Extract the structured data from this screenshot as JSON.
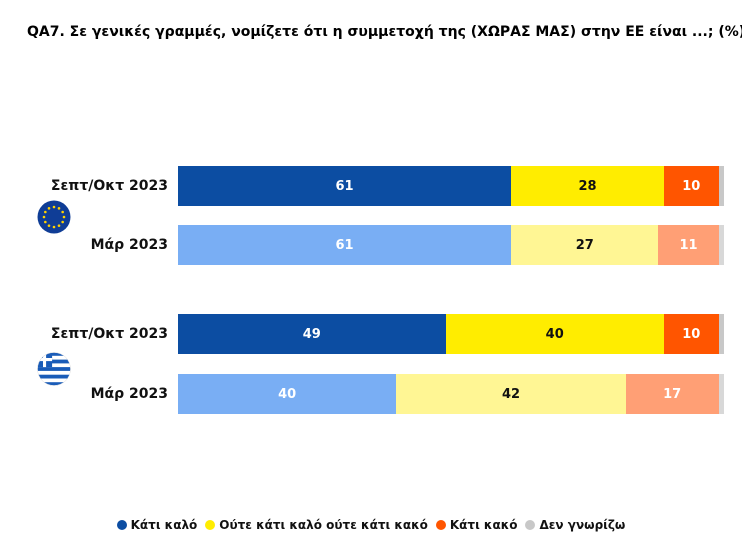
{
  "title": "QA7. Σε γενικές γραμμές, νομίζετε ότι η συμμετοχή της (ΧΩΡΑΣ ΜΑΣ) στην ΕΕ είναι ...; (%)",
  "legend": [
    {
      "label": "Κάτι καλό",
      "color": "#0c4da2"
    },
    {
      "label": "Ούτε κάτι καλό ούτε κάτι κακό",
      "color": "#ffed00"
    },
    {
      "label": "Κάτι κακό",
      "color": "#ff5500"
    },
    {
      "label": "Δεν γνωρίζω",
      "color": "#c8c8c8"
    }
  ],
  "flags": {
    "eu": "eu-flag-icon",
    "greece": "greece-flag-icon"
  },
  "chart_data": {
    "type": "bar",
    "orientation": "horizontal",
    "stacked": true,
    "title": "QA7. Σε γενικές γραμμές, νομίζετε ότι η συμμετοχή της (ΧΩΡΑΣ ΜΑΣ) στην ΕΕ είναι ...; (%)",
    "categories": [
      "Σεπτ/Οκτ 2023",
      "Μάρ 2023",
      "Σεπτ/Οκτ 2023",
      "Μάρ 2023"
    ],
    "series": [
      {
        "name": "Κάτι καλό",
        "values": [
          61,
          61,
          49,
          40
        ],
        "colors": [
          "#0c4da2",
          "#79aef4",
          "#0c4da2",
          "#79aef4"
        ],
        "label_colors": [
          "#ffffff",
          "#ffffff",
          "#ffffff",
          "#ffffff"
        ]
      },
      {
        "name": "Ούτε κάτι καλό ούτε κάτι κακό",
        "values": [
          28,
          27,
          40,
          42
        ],
        "colors": [
          "#ffed00",
          "#fff694",
          "#ffed00",
          "#fff694"
        ],
        "label_colors": [
          "#111111",
          "#111111",
          "#111111",
          "#111111"
        ]
      },
      {
        "name": "Κάτι κακό",
        "values": [
          10,
          11,
          10,
          17
        ],
        "colors": [
          "#ff5500",
          "#ff9f75",
          "#ff5500",
          "#ff9f75"
        ],
        "label_colors": [
          "#ffffff",
          "#ffffff",
          "#ffffff",
          "#ffffff"
        ]
      },
      {
        "name": "Δεν γνωρίζω",
        "values": [
          1,
          1,
          1,
          1
        ],
        "colors": [
          "#c8c8c8",
          "#d8d8d8",
          "#c8c8c8",
          "#d8d8d8"
        ],
        "label_colors": [
          "#111111",
          "#111111",
          "#111111",
          "#111111"
        ],
        "show_labels": false
      }
    ],
    "row_groups": [
      "eu",
      "eu",
      "greece",
      "greece"
    ],
    "xlim": [
      0,
      100
    ],
    "grid": false,
    "legend_position": "bottom"
  }
}
